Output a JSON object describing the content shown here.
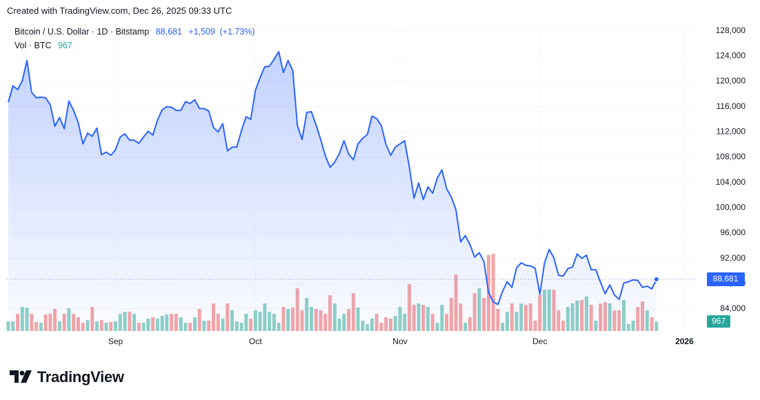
{
  "header": {
    "created": "Created with TradingView.com, Dec 26, 2025 09:33 UTC"
  },
  "logo": "TradingView",
  "chart_data": {
    "type": "line",
    "x": [
      0,
      1,
      2,
      3,
      4,
      5,
      6,
      7,
      8,
      9,
      10,
      11,
      12,
      13,
      14,
      15,
      16,
      17,
      18,
      19,
      20,
      21,
      22,
      23,
      24,
      25,
      26,
      27,
      28,
      29,
      30,
      31,
      32,
      33,
      34,
      35,
      36,
      37,
      38,
      39,
      40,
      41,
      42,
      43,
      44,
      45,
      46,
      47,
      48,
      49,
      50,
      51,
      52,
      53,
      54,
      55,
      56,
      57,
      58,
      59,
      60,
      61,
      62,
      63,
      64,
      65,
      66,
      67,
      68,
      69,
      70,
      71,
      72,
      73,
      74,
      75,
      76,
      77,
      78,
      79,
      80,
      81,
      82,
      83,
      84,
      85,
      86,
      87,
      88,
      89,
      90,
      91,
      92,
      93,
      94,
      95,
      96,
      97,
      98,
      99,
      100,
      101,
      102,
      103,
      104,
      105,
      106,
      107,
      108,
      109,
      110,
      111,
      112,
      113,
      114,
      115,
      116,
      117,
      118,
      119,
      120,
      121,
      122,
      123,
      124,
      125,
      126,
      127,
      128,
      129,
      130,
      131,
      132,
      133,
      134,
      135,
      136,
      137,
      138,
      139
    ],
    "xlim": [
      -0.3,
      147.6
    ],
    "xticks": [
      {
        "value": 23,
        "label": "Sep"
      },
      {
        "value": 53,
        "label": "Oct"
      },
      {
        "value": 84,
        "label": "Nov"
      },
      {
        "value": 114,
        "label": "Dec"
      },
      {
        "value": 145,
        "label": "2026"
      }
    ],
    "ylim": [
      80500,
      129600
    ],
    "yticks": [
      {
        "value": 84000,
        "label": "84,000"
      },
      {
        "value": 88000,
        "label": "88,000"
      },
      {
        "value": 92000,
        "label": "92,000"
      },
      {
        "value": 96000,
        "label": "96,000"
      },
      {
        "value": 100000,
        "label": "100,000"
      },
      {
        "value": 104000,
        "label": "104,000"
      },
      {
        "value": 108000,
        "label": "108,000"
      },
      {
        "value": 112000,
        "label": "112,000"
      },
      {
        "value": 116000,
        "label": "116,000"
      },
      {
        "value": 120000,
        "label": "120,000"
      },
      {
        "value": 124000,
        "label": "124,000"
      },
      {
        "value": 128000,
        "label": "128,000"
      }
    ],
    "y2lim": [
      0,
      31500
    ],
    "grid": true,
    "series": [
      {
        "name": "Bitcoin / U.S. Dollar · 1D · Bitstamp",
        "type": "area",
        "color": "#2962ff",
        "last_label": "88,681",
        "change": "+1,509",
        "change_percent": "(+1.73%)",
        "values": [
          116700,
          119300,
          118700,
          120100,
          123300,
          118300,
          117400,
          117500,
          117400,
          116300,
          112900,
          114300,
          112500,
          116900,
          115400,
          113500,
          110100,
          111800,
          111300,
          112600,
          108400,
          108800,
          108300,
          109200,
          111200,
          111700,
          110700,
          110700,
          110200,
          111200,
          112100,
          111500,
          113900,
          115500,
          116000,
          115900,
          115400,
          115400,
          116800,
          116500,
          117100,
          115700,
          115700,
          115300,
          112700,
          112000,
          113300,
          109000,
          109600,
          109600,
          112200,
          114400,
          114000,
          118600,
          120600,
          122300,
          122400,
          123500,
          124700,
          121400,
          123300,
          121700,
          113000,
          110800,
          115100,
          115200,
          113100,
          110800,
          108200,
          106400,
          107200,
          108600,
          110600,
          108500,
          107600,
          110100,
          111000,
          111600,
          114500,
          114100,
          113000,
          110000,
          108300,
          109600,
          110100,
          110600,
          106500,
          101500,
          103900,
          101300,
          103300,
          102300,
          104700,
          106000,
          103000,
          101700,
          99700,
          94600,
          95600,
          94200,
          92200,
          92900,
          91500,
          86600,
          85100,
          84700,
          86800,
          88300,
          87400,
          90500,
          91300,
          90900,
          90800,
          90400,
          86300,
          91300,
          93400,
          92100,
          89300,
          89200,
          90400,
          90600,
          92700,
          92000,
          92500,
          90200,
          90200,
          88200,
          86400,
          87800,
          86200,
          85500,
          88100,
          88300,
          88600,
          88500,
          87400,
          87600,
          87172,
          88681
        ]
      },
      {
        "name": "Vol · BTC",
        "type": "bar",
        "axis": "y2",
        "up_color": "#8fd1c6",
        "down_color": "#f5a6a6",
        "values": [
          980,
          980,
          1750,
          2450,
          2380,
          1750,
          910,
          840,
          1680,
          1750,
          2240,
          980,
          1750,
          2310,
          1750,
          1400,
          840,
          1120,
          2450,
          980,
          1120,
          840,
          910,
          980,
          1750,
          1960,
          1960,
          1750,
          840,
          840,
          1260,
          1400,
          1260,
          1540,
          1680,
          1750,
          1750,
          1400,
          840,
          840,
          1400,
          2240,
          1050,
          1050,
          2800,
          1750,
          1260,
          2800,
          2100,
          980,
          840,
          1750,
          1260,
          2100,
          1960,
          2800,
          1960,
          1750,
          840,
          2450,
          2240,
          2380,
          4340,
          2100,
          3360,
          2450,
          2240,
          2100,
          1750,
          3640,
          2800,
          1260,
          1750,
          2240,
          3850,
          2380,
          1050,
          700,
          1260,
          1750,
          840,
          1400,
          1260,
          1540,
          2450,
          1750,
          4760,
          2660,
          2800,
          2660,
          2450,
          1750,
          840,
          2660,
          1750,
          3360,
          5740,
          2800,
          840,
          1400,
          3850,
          4340,
          3360,
          7700,
          7840,
          2240,
          840,
          1960,
          2800,
          1960,
          2800,
          2660,
          2800,
          1050,
          3640,
          4200,
          4200,
          4200,
          2100,
          1050,
          2450,
          2800,
          3080,
          3150,
          3500,
          2660,
          1050,
          2800,
          2940,
          2800,
          2100,
          2100,
          3150,
          700,
          1050,
          2450,
          3010,
          2100,
          1400,
          967
        ]
      }
    ]
  }
}
